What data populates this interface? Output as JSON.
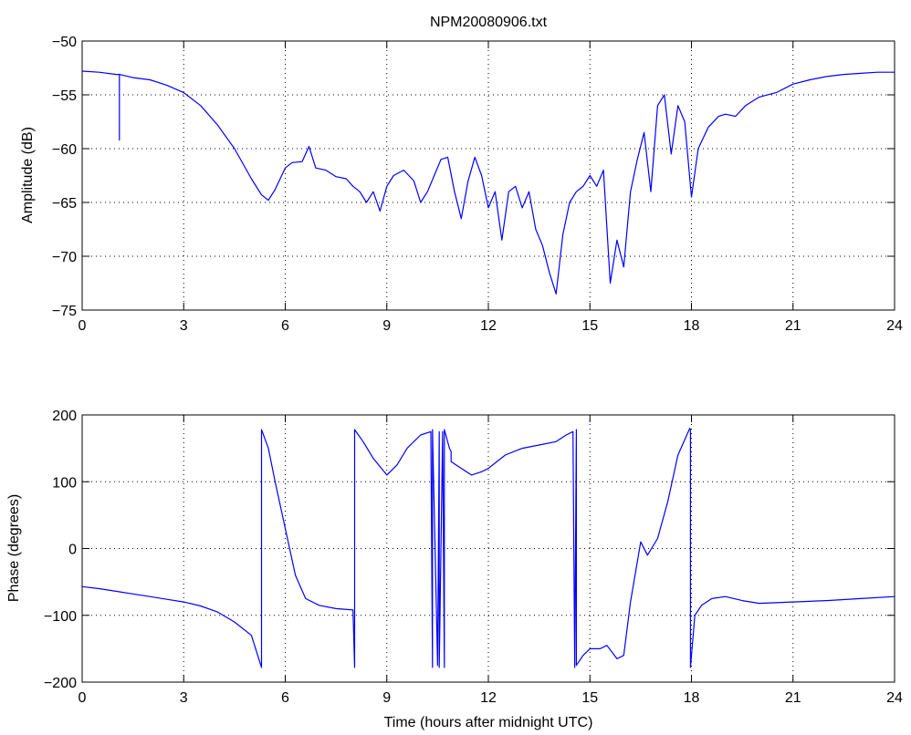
{
  "title": "NPM20080906.txt",
  "colors": {
    "line": "#0000ff",
    "axis": "#000000",
    "grid": "#000000",
    "background": "#ffffff"
  },
  "chart_data": [
    {
      "type": "line",
      "title": "NPM20080906.txt",
      "xlabel": "",
      "ylabel": "Amplitude (dB)",
      "xlim": [
        0,
        24
      ],
      "ylim": [
        -75,
        -50
      ],
      "xticks": [
        "0",
        "3",
        "6",
        "9",
        "12",
        "15",
        "18",
        "21",
        "24"
      ],
      "yticks": [
        "−75",
        "−70",
        "−65",
        "−60",
        "−55",
        "−50"
      ],
      "grid": true,
      "series": [
        {
          "x": [
            0,
            0.5,
            1.0,
            1.1,
            1.1,
            1.1,
            1.5,
            2.0,
            2.5,
            3.0,
            3.5,
            4.0,
            4.5,
            5.0,
            5.3,
            5.5,
            5.7,
            6.0,
            6.2,
            6.5,
            6.7,
            6.9,
            7.2,
            7.5,
            7.8,
            8.0,
            8.2,
            8.4,
            8.6,
            8.8,
            9.0,
            9.2,
            9.5,
            9.8,
            10.0,
            10.2,
            10.4,
            10.6,
            10.8,
            11.0,
            11.2,
            11.4,
            11.6,
            11.8,
            12.0,
            12.2,
            12.4,
            12.6,
            12.8,
            13.0,
            13.2,
            13.4,
            13.6,
            13.8,
            14.0,
            14.2,
            14.4,
            14.6,
            14.8,
            15.0,
            15.2,
            15.4,
            15.6,
            15.8,
            16.0,
            16.2,
            16.4,
            16.6,
            16.8,
            17.0,
            17.2,
            17.4,
            17.6,
            17.8,
            18.0,
            18.2,
            18.5,
            18.8,
            19.0,
            19.3,
            19.6,
            20.0,
            20.5,
            21.0,
            21.5,
            22.0,
            22.5,
            23.0,
            23.5,
            24.0
          ],
          "y": [
            -52.8,
            -52.9,
            -53.1,
            -53.1,
            -59.2,
            -53.1,
            -53.4,
            -53.6,
            -54.1,
            -54.8,
            -56.0,
            -57.8,
            -60.0,
            -62.8,
            -64.3,
            -64.8,
            -63.8,
            -61.8,
            -61.3,
            -61.2,
            -59.8,
            -61.8,
            -62.0,
            -62.6,
            -62.8,
            -63.5,
            -64.0,
            -65.0,
            -64.0,
            -65.8,
            -63.5,
            -62.5,
            -62.0,
            -63.0,
            -65.0,
            -64.0,
            -62.5,
            -61.0,
            -60.8,
            -64.0,
            -66.5,
            -63.0,
            -60.8,
            -62.5,
            -65.5,
            -64.0,
            -68.5,
            -64.0,
            -63.5,
            -65.5,
            -64.0,
            -67.5,
            -69.0,
            -71.5,
            -73.5,
            -68.0,
            -65.0,
            -64.0,
            -63.5,
            -62.5,
            -63.5,
            -62.0,
            -72.5,
            -68.5,
            -71.0,
            -64.0,
            -61.0,
            -58.5,
            -64.0,
            -56.0,
            -55.0,
            -60.5,
            -56.0,
            -57.5,
            -64.5,
            -60.0,
            -58.0,
            -57.0,
            -56.8,
            -57.0,
            -56.0,
            -55.2,
            -54.8,
            -54.0,
            -53.6,
            -53.3,
            -53.1,
            -53.0,
            -52.9,
            -52.9
          ]
        }
      ]
    },
    {
      "type": "line",
      "title": "",
      "xlabel": "Time (hours after midnight UTC)",
      "ylabel": "Phase (degrees)",
      "xlim": [
        0,
        24
      ],
      "ylim": [
        -200,
        200
      ],
      "xticks": [
        "0",
        "3",
        "6",
        "9",
        "12",
        "15",
        "18",
        "21",
        "24"
      ],
      "yticks": [
        "−200",
        "−100",
        "0",
        "100",
        "200"
      ],
      "grid": true,
      "series": [
        {
          "x": [
            0,
            0.5,
            1.0,
            1.5,
            2.0,
            2.5,
            3.0,
            3.5,
            4.0,
            4.5,
            5.0,
            5.3,
            5.3,
            5.5,
            5.7,
            6.0,
            6.3,
            6.6,
            7.0,
            7.5,
            8.0,
            8.05,
            8.05,
            8.3,
            8.6,
            9.0,
            9.3,
            9.6,
            10.0,
            10.3,
            10.35,
            10.35,
            10.5,
            10.55,
            10.55,
            10.65,
            10.7,
            10.7,
            10.85,
            10.9,
            10.9,
            11.2,
            11.5,
            11.8,
            12.0,
            12.5,
            13.0,
            13.5,
            14.0,
            14.3,
            14.5,
            14.55,
            14.6,
            14.6,
            14.8,
            15.0,
            15.3,
            15.5,
            15.8,
            16.0,
            16.2,
            16.5,
            16.7,
            17.0,
            17.3,
            17.6,
            17.95,
            17.97,
            17.97,
            18.1,
            18.3,
            18.6,
            19.0,
            19.5,
            20.0,
            21.0,
            22.0,
            23.0,
            24.0
          ],
          "y": [
            -57,
            -60,
            -64,
            -68,
            -72,
            -76,
            -80,
            -86,
            -95,
            -110,
            -130,
            -178,
            178,
            150,
            100,
            30,
            -40,
            -75,
            -85,
            -90,
            -92,
            -178,
            178,
            160,
            135,
            110,
            125,
            150,
            170,
            175,
            -178,
            178,
            -175,
            175,
            -178,
            175,
            -178,
            178,
            150,
            145,
            130,
            120,
            110,
            115,
            120,
            140,
            150,
            155,
            160,
            170,
            175,
            -178,
            178,
            -175,
            -160,
            -150,
            -150,
            -145,
            -165,
            -160,
            -80,
            10,
            -10,
            15,
            70,
            140,
            180,
            178,
            -178,
            -100,
            -85,
            -75,
            -72,
            -78,
            -82,
            -80,
            -78,
            -75,
            -72
          ]
        }
      ]
    }
  ]
}
